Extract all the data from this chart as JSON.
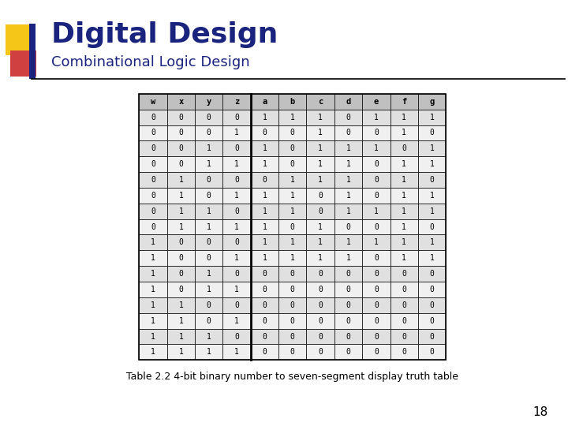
{
  "title": "Digital Design",
  "subtitle": "Combinational Logic Design",
  "caption": "Table 2.2 4-bit binary number to seven-segment display truth table",
  "page_number": "18",
  "headers": [
    "w",
    "x",
    "y",
    "z",
    "a",
    "b",
    "c",
    "d",
    "e",
    "f",
    "g"
  ],
  "rows": [
    [
      0,
      0,
      0,
      0,
      1,
      1,
      1,
      0,
      1,
      1,
      1
    ],
    [
      0,
      0,
      0,
      1,
      0,
      0,
      1,
      0,
      0,
      1,
      0
    ],
    [
      0,
      0,
      1,
      0,
      1,
      0,
      1,
      1,
      1,
      0,
      1
    ],
    [
      0,
      0,
      1,
      1,
      1,
      0,
      1,
      1,
      0,
      1,
      1
    ],
    [
      0,
      1,
      0,
      0,
      0,
      1,
      1,
      1,
      0,
      1,
      0
    ],
    [
      0,
      1,
      0,
      1,
      1,
      1,
      0,
      1,
      0,
      1,
      1
    ],
    [
      0,
      1,
      1,
      0,
      1,
      1,
      0,
      1,
      1,
      1,
      1
    ],
    [
      0,
      1,
      1,
      1,
      1,
      0,
      1,
      0,
      0,
      1,
      0
    ],
    [
      1,
      0,
      0,
      0,
      1,
      1,
      1,
      1,
      1,
      1,
      1
    ],
    [
      1,
      0,
      0,
      1,
      1,
      1,
      1,
      1,
      0,
      1,
      1
    ],
    [
      1,
      0,
      1,
      0,
      0,
      0,
      0,
      0,
      0,
      0,
      0
    ],
    [
      1,
      0,
      1,
      1,
      0,
      0,
      0,
      0,
      0,
      0,
      0
    ],
    [
      1,
      1,
      0,
      0,
      0,
      0,
      0,
      0,
      0,
      0,
      0
    ],
    [
      1,
      1,
      0,
      1,
      0,
      0,
      0,
      0,
      0,
      0,
      0
    ],
    [
      1,
      1,
      1,
      0,
      0,
      0,
      0,
      0,
      0,
      0,
      0
    ],
    [
      1,
      1,
      1,
      1,
      0,
      0,
      0,
      0,
      0,
      0,
      0
    ]
  ],
  "col_separator_after": 3,
  "header_bg": "#c0c0c0",
  "row_even_bg": "#e0e0e0",
  "row_odd_bg": "#f0f0f0",
  "border_color": "#000000",
  "title_color": "#1a237e",
  "subtitle_color": "#1a237e",
  "caption_color": "#000000",
  "page_color": "#000000",
  "logo_yellow": "#f5c518",
  "logo_red": "#d04040",
  "logo_blue": "#1a237e",
  "title_fontsize": 26,
  "subtitle_fontsize": 13,
  "caption_fontsize": 9,
  "table_fontsize": 7,
  "header_fontsize": 7.5
}
